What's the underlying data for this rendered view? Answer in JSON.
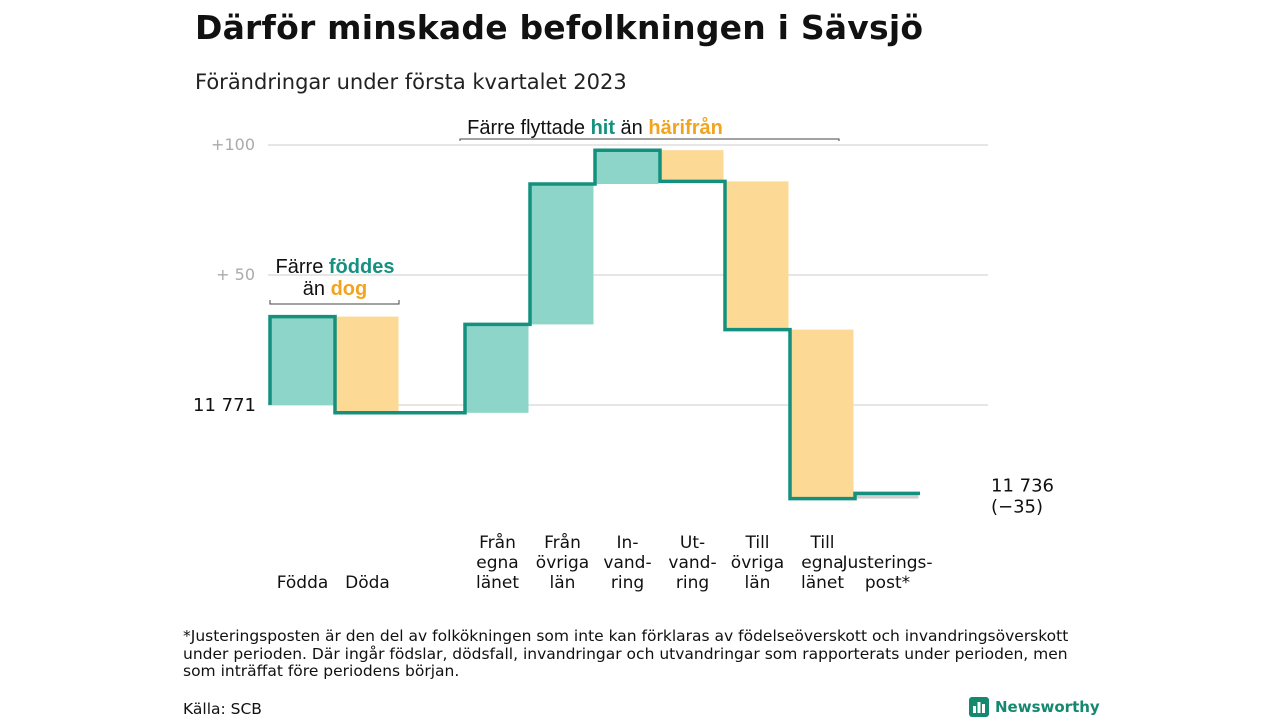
{
  "title": "Därför minskade befolkningen i Sävsjö",
  "subtitle": "Förändringar under första kvartalet 2023",
  "chart_data": {
    "type": "waterfall",
    "baseline": 11771,
    "end": 11736,
    "end_label": "11 736",
    "end_change_label": "(−35)",
    "start_label": "11 771",
    "yticks": [
      {
        "value": 100,
        "label": "+100"
      },
      {
        "value": 50,
        "label": "+ 50"
      }
    ],
    "ylim": [
      -40,
      105
    ],
    "grid": true,
    "colors": {
      "increase": "#8dd5c9",
      "decrease": "#fcd995",
      "line": "#14917e",
      "grid": "#dddddd",
      "tick": "#aaaaaa",
      "teal_text": "#149180",
      "orange_text": "#f3a41f"
    },
    "steps": [
      {
        "category": "Födda",
        "lines": [
          "Födda"
        ],
        "change": 34,
        "kind": "increase"
      },
      {
        "category": "Döda",
        "lines": [
          "Döda"
        ],
        "change": -37,
        "kind": "decrease"
      },
      {
        "category": "",
        "lines": [],
        "change": 0,
        "kind": "gap"
      },
      {
        "category": "Från egna länet",
        "lines": [
          "Från",
          "egna",
          "länet"
        ],
        "change": 34,
        "kind": "increase"
      },
      {
        "category": "Från övriga län",
        "lines": [
          "Från",
          "övriga",
          "län"
        ],
        "change": 54,
        "kind": "increase"
      },
      {
        "category": "Invandring",
        "lines": [
          "In-",
          "vand-",
          "ring"
        ],
        "change": 13,
        "kind": "increase"
      },
      {
        "category": "Utvandring",
        "lines": [
          "Ut-",
          "vand-",
          "ring"
        ],
        "change": -12,
        "kind": "decrease"
      },
      {
        "category": "Till övriga län",
        "lines": [
          "Till",
          "övriga",
          "län"
        ],
        "change": -57,
        "kind": "decrease"
      },
      {
        "category": "Till egna länet",
        "lines": [
          "Till",
          "egna",
          "länet"
        ],
        "change": -65,
        "kind": "decrease"
      },
      {
        "category": "Justeringspost*",
        "lines": [
          "Justerings-",
          "post*"
        ],
        "change": 2,
        "kind": "adjust"
      }
    ],
    "annotations": {
      "births": {
        "line1_a": "Färre ",
        "line1_b": "föddes",
        "line2_a": "än ",
        "line2_b": "dog"
      },
      "migration": {
        "a": "Färre flyttade ",
        "b": "hit",
        "c": " än ",
        "d": "härifrån"
      }
    }
  },
  "footnote": "*Justeringsposten är den del av folkökningen som inte kan förklaras av födelseöverskott och invandringsöverskott under perioden. Där ingår födslar, dödsfall, invandringar och utvandringar som rapporterats under perioden, men som inträffat före periodens början.",
  "source": "Källa: SCB",
  "brand": {
    "name": "Newsworthy",
    "icon": "newsworthy-bar-chart-icon",
    "color": "#16886f"
  }
}
